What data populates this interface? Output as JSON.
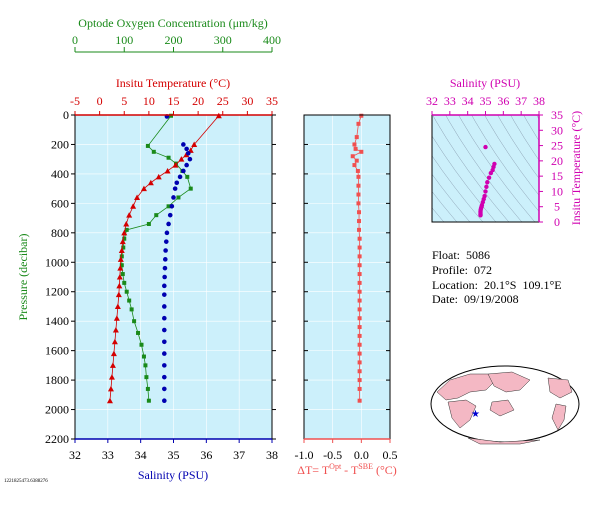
{
  "colors": {
    "oxygen": "#1a8a1a",
    "temperature": "#d40000",
    "salinity": "#0000b0",
    "delta": "#f05050",
    "ts": "#d000b0",
    "panel_bg": "#ccf0fb",
    "axis_green": "#1a8a1a"
  },
  "chart_data": [
    {
      "type": "line",
      "panel": "main-profile",
      "ylabel": "Pressure (decibar)",
      "y_ticks": [
        0,
        200,
        400,
        600,
        800,
        1000,
        1200,
        1400,
        1600,
        1800,
        2000,
        2200
      ],
      "ylim": [
        0,
        2200
      ],
      "y_inverted": true,
      "axes": {
        "oxygen": {
          "label": "Optode Oxygen Concentration (μm/kg)",
          "ticks": [
            0,
            100,
            200,
            300,
            400
          ],
          "lim": [
            0,
            400
          ]
        },
        "temperature": {
          "label": "Insitu Temperature (°C)",
          "ticks": [
            -5,
            0,
            5,
            10,
            15,
            20,
            25,
            30,
            35
          ],
          "lim": [
            -5,
            35
          ]
        },
        "salinity": {
          "label": "Salinity (PSU)",
          "ticks": [
            32,
            33,
            34,
            35,
            36,
            37,
            38
          ],
          "lim": [
            32,
            38
          ]
        }
      },
      "series": [
        {
          "name": "Optode Oxygen Concentration (μm/kg)",
          "axis": "oxygen",
          "points": [
            [
              195,
              5
            ],
            [
              148,
              210
            ],
            [
              160,
              250
            ],
            [
              190,
              290
            ],
            [
              205,
              330
            ],
            [
              218,
              380
            ],
            [
              228,
              420
            ],
            [
              235,
              500
            ],
            [
              210,
              560
            ],
            [
              190,
              620
            ],
            [
              165,
              680
            ],
            [
              150,
              740
            ],
            [
              105,
              780
            ],
            [
              100,
              840
            ],
            [
              98,
              900
            ],
            [
              95,
              960
            ],
            [
              95,
              1020
            ],
            [
              97,
              1080
            ],
            [
              100,
              1140
            ],
            [
              105,
              1200
            ],
            [
              110,
              1260
            ],
            [
              115,
              1320
            ],
            [
              120,
              1400
            ],
            [
              128,
              1480
            ],
            [
              135,
              1560
            ],
            [
              140,
              1640
            ],
            [
              143,
              1700
            ],
            [
              145,
              1780
            ],
            [
              148,
              1860
            ],
            [
              150,
              1940
            ]
          ]
        },
        {
          "name": "Insitu Temperature (°C)",
          "axis": "temperature",
          "points": [
            [
              24.2,
              5
            ],
            [
              19.2,
              200
            ],
            [
              18.5,
              240
            ],
            [
              17.6,
              270
            ],
            [
              16.6,
              300
            ],
            [
              15.4,
              340
            ],
            [
              13.8,
              380
            ],
            [
              12.0,
              420
            ],
            [
              10.4,
              460
            ],
            [
              9.0,
              500
            ],
            [
              7.6,
              560
            ],
            [
              6.8,
              620
            ],
            [
              6.0,
              680
            ],
            [
              5.4,
              740
            ],
            [
              5.0,
              800
            ],
            [
              4.7,
              860
            ],
            [
              4.5,
              920
            ],
            [
              4.3,
              980
            ],
            [
              4.2,
              1040
            ],
            [
              4.1,
              1100
            ],
            [
              4.0,
              1160
            ],
            [
              3.9,
              1220
            ],
            [
              3.7,
              1300
            ],
            [
              3.5,
              1380
            ],
            [
              3.3,
              1460
            ],
            [
              3.1,
              1540
            ],
            [
              2.9,
              1620
            ],
            [
              2.7,
              1700
            ],
            [
              2.5,
              1780
            ],
            [
              2.3,
              1860
            ],
            [
              2.1,
              1940
            ]
          ]
        },
        {
          "name": "Salinity (PSU)",
          "axis": "salinity",
          "points": [
            [
              34.8,
              10
            ],
            [
              35.3,
              200
            ],
            [
              35.4,
              230
            ],
            [
              35.45,
              260
            ],
            [
              35.5,
              300
            ],
            [
              35.4,
              340
            ],
            [
              35.3,
              380
            ],
            [
              35.2,
              420
            ],
            [
              35.1,
              460
            ],
            [
              35.05,
              500
            ],
            [
              35.0,
              560
            ],
            [
              34.95,
              620
            ],
            [
              34.9,
              680
            ],
            [
              34.85,
              740
            ],
            [
              34.8,
              800
            ],
            [
              34.78,
              860
            ],
            [
              34.76,
              920
            ],
            [
              34.75,
              980
            ],
            [
              34.74,
              1040
            ],
            [
              34.73,
              1100
            ],
            [
              34.72,
              1160
            ],
            [
              34.72,
              1220
            ],
            [
              34.72,
              1300
            ],
            [
              34.72,
              1380
            ],
            [
              34.72,
              1460
            ],
            [
              34.72,
              1540
            ],
            [
              34.72,
              1620
            ],
            [
              34.72,
              1700
            ],
            [
              34.72,
              1780
            ],
            [
              34.72,
              1860
            ],
            [
              34.72,
              1940
            ]
          ]
        }
      ]
    },
    {
      "type": "line",
      "panel": "delta-profile",
      "xlabel": "ΔT= T^Opt - T^SBE (°C)",
      "x_ticks": [
        -1.0,
        -0.5,
        0.0,
        0.5
      ],
      "xlim": [
        -1.0,
        0.5
      ],
      "ylim": [
        0,
        2200
      ],
      "y_inverted": true,
      "series": [
        {
          "name": "ΔT",
          "points": [
            [
              0.0,
              5
            ],
            [
              -0.05,
              60
            ],
            [
              -0.08,
              150
            ],
            [
              -0.12,
              200
            ],
            [
              -0.1,
              230
            ],
            [
              0.0,
              250
            ],
            [
              -0.15,
              280
            ],
            [
              -0.08,
              310
            ],
            [
              -0.12,
              340
            ],
            [
              -0.06,
              380
            ],
            [
              -0.05,
              420
            ],
            [
              -0.05,
              480
            ],
            [
              -0.05,
              540
            ],
            [
              -0.05,
              600
            ],
            [
              -0.04,
              660
            ],
            [
              -0.04,
              720
            ],
            [
              -0.04,
              780
            ],
            [
              -0.03,
              840
            ],
            [
              -0.03,
              900
            ],
            [
              -0.03,
              960
            ],
            [
              -0.03,
              1020
            ],
            [
              -0.03,
              1080
            ],
            [
              -0.03,
              1140
            ],
            [
              -0.03,
              1200
            ],
            [
              -0.03,
              1260
            ],
            [
              -0.03,
              1320
            ],
            [
              -0.03,
              1380
            ],
            [
              -0.03,
              1440
            ],
            [
              -0.03,
              1500
            ],
            [
              -0.03,
              1560
            ],
            [
              -0.03,
              1620
            ],
            [
              -0.03,
              1680
            ],
            [
              -0.03,
              1740
            ],
            [
              -0.03,
              1800
            ],
            [
              -0.03,
              1860
            ],
            [
              -0.03,
              1940
            ]
          ]
        }
      ]
    },
    {
      "type": "scatter",
      "panel": "ts-diagram",
      "xlabel": "Salinity (PSU)",
      "ylabel": "Insitu Temperature (°C)",
      "x_ticks": [
        32,
        33,
        34,
        35,
        36,
        37,
        38
      ],
      "y_ticks": [
        0,
        5,
        10,
        15,
        20,
        25,
        30,
        35
      ],
      "xlim": [
        32,
        38
      ],
      "ylim": [
        0,
        35
      ],
      "series": [
        {
          "name": "T-S",
          "points": [
            [
              35.0,
              24.5
            ],
            [
              35.5,
              19.0
            ],
            [
              35.45,
              18.0
            ],
            [
              35.4,
              17.0
            ],
            [
              35.3,
              16.0
            ],
            [
              35.2,
              14.5
            ],
            [
              35.1,
              13.0
            ],
            [
              35.05,
              11.5
            ],
            [
              35.0,
              10.0
            ],
            [
              34.95,
              8.5
            ],
            [
              34.9,
              7.5
            ],
            [
              34.85,
              6.5
            ],
            [
              34.8,
              5.5
            ],
            [
              34.78,
              5.0
            ],
            [
              34.75,
              4.5
            ],
            [
              34.73,
              4.0
            ],
            [
              34.72,
              3.5
            ],
            [
              34.72,
              3.0
            ],
            [
              34.72,
              2.5
            ],
            [
              34.72,
              2.2
            ]
          ]
        }
      ]
    }
  ],
  "info": {
    "float": "Float:  5086",
    "profile": "Profile:  072",
    "location": "Location:  20.1°S  109.1°E",
    "date": "Date:  09/19/2008"
  },
  "footer_id": "1221825473.6388276"
}
